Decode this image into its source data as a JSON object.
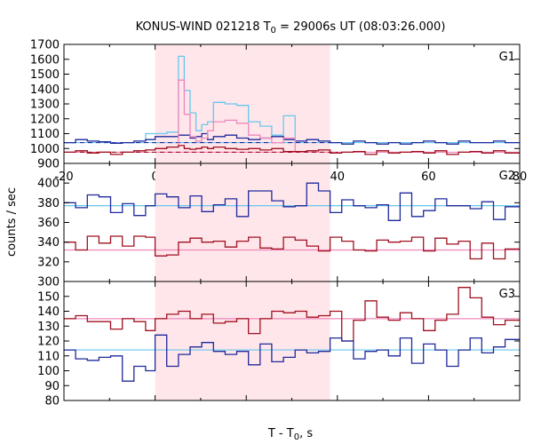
{
  "title": {
    "main": "KONUS-WIND 021218 T",
    "sub": "0",
    "rest": " = 29006s UT (08:03:26.000)"
  },
  "xlabel": {
    "main": "T - T",
    "sub": "0",
    "rest": ", s"
  },
  "ylabel": "counts / sec",
  "colors": {
    "blue": "#1f2a9c",
    "red": "#a01020",
    "light_blue": "#66c8ee",
    "pink": "#ee88bb",
    "highlight": "#ffe6ea",
    "frame": "#000000"
  },
  "chart_data": [
    {
      "type": "line",
      "step": true,
      "panel_label": "G1",
      "xlim": [
        -20,
        80
      ],
      "ylim": [
        900,
        1700
      ],
      "yticks": [
        900,
        1000,
        1100,
        1200,
        1300,
        1400,
        1500,
        1600,
        1700
      ],
      "xticks": [
        -20,
        0,
        20,
        40,
        60,
        80
      ],
      "xticklabels": [
        "-20",
        "0",
        "20",
        "40",
        "60",
        "80"
      ],
      "highlight_x": [
        0,
        38.4
      ],
      "bin_edges": [
        -20,
        -17.44,
        -14.88,
        -12.32,
        -9.76,
        -7.2,
        -4.64,
        -2.08,
        0,
        2.56,
        5.12,
        6.4,
        7.68,
        8.96,
        10.24,
        11.52,
        12.8,
        15.36,
        17.92,
        20.48,
        23.04,
        25.6,
        28.16,
        30.72,
        33.28,
        35.84,
        38.4,
        40.96,
        43.52,
        46.08,
        48.64,
        51.2,
        53.76,
        56.32,
        58.88,
        61.44,
        64,
        66.56,
        69.12,
        71.68,
        74.24,
        76.8,
        80
      ],
      "series": [
        {
          "role": "summed counts",
          "color": "#66c8ee",
          "values": [
            1040,
            1060,
            1050,
            1045,
            1035,
            1040,
            1050,
            1100,
            1100,
            1110,
            1620,
            1390,
            1240,
            1120,
            1160,
            1180,
            1310,
            1300,
            1290,
            1180,
            1150,
            1090,
            1220,
            1050,
            1060,
            1050,
            1040,
            1030,
            1050,
            1040,
            1030,
            1040,
            1030,
            1040,
            1050,
            1040,
            1030,
            1050,
            1040,
            1040,
            1050,
            1040
          ]
        },
        {
          "role": "high-energy counts",
          "color": "#1f2a9c",
          "values": [
            1040,
            1060,
            1050,
            1045,
            1035,
            1040,
            1050,
            1060,
            1080,
            1080,
            1090,
            1090,
            1070,
            1080,
            1100,
            1060,
            1080,
            1090,
            1070,
            1060,
            1070,
            1080,
            1060,
            1050,
            1060,
            1050,
            1040,
            1030,
            1050,
            1040,
            1030,
            1040,
            1030,
            1040,
            1050,
            1040,
            1030,
            1050,
            1040,
            1040,
            1050,
            1040
          ]
        },
        {
          "role": "low-energy counts",
          "color": "#ee88bb",
          "values": [
            975,
            985,
            970,
            975,
            960,
            975,
            985,
            990,
            1000,
            1010,
            1460,
            1230,
            1080,
            1050,
            1070,
            1120,
            1180,
            1190,
            1170,
            1090,
            1070,
            1040,
            1070,
            980,
            985,
            990,
            970,
            975,
            980,
            960,
            985,
            970,
            975,
            980,
            970,
            985,
            960,
            975,
            980,
            970,
            985,
            970
          ]
        },
        {
          "role": "low-energy band",
          "color": "#a01020",
          "values": [
            975,
            985,
            970,
            975,
            960,
            975,
            985,
            990,
            1000,
            1010,
            1020,
            1000,
            995,
            1000,
            1010,
            1000,
            1010,
            1000,
            995,
            1000,
            990,
            1000,
            980,
            980,
            985,
            990,
            970,
            975,
            980,
            960,
            985,
            970,
            975,
            980,
            970,
            985,
            960,
            975,
            980,
            970,
            985,
            970
          ]
        }
      ],
      "background_levels": [
        {
          "color": "#66c8ee",
          "y": 1040,
          "style": "solid"
        },
        {
          "color": "#1f2a9c",
          "y": 1040,
          "style": "dashed",
          "x_range": [
            -20,
            40
          ]
        },
        {
          "color": "#ee88bb",
          "y": 975,
          "style": "solid"
        },
        {
          "color": "#a01020",
          "y": 975,
          "style": "dashed",
          "x_range": [
            -20,
            40
          ]
        }
      ]
    },
    {
      "type": "line",
      "step": true,
      "panel_label": "G2",
      "xlim": [
        -20,
        80
      ],
      "ylim": [
        300,
        420
      ],
      "yticks": [
        300,
        320,
        340,
        360,
        380,
        400
      ],
      "highlight_x": [
        0,
        38.4
      ],
      "bin_edges": [
        -20,
        -17.44,
        -14.88,
        -12.32,
        -9.76,
        -7.2,
        -4.64,
        -2.08,
        0,
        2.56,
        5.12,
        7.68,
        10.24,
        12.8,
        15.36,
        17.92,
        20.48,
        23.04,
        25.6,
        28.16,
        30.72,
        33.28,
        35.84,
        38.4,
        40.96,
        43.52,
        46.08,
        48.64,
        51.2,
        53.76,
        56.32,
        58.88,
        61.44,
        64,
        66.56,
        69.12,
        71.68,
        74.24,
        76.8,
        80
      ],
      "series": [
        {
          "color": "#1f2a9c",
          "values": [
            380,
            375,
            388,
            386,
            370,
            379,
            367,
            377,
            389,
            386,
            375,
            387,
            371,
            378,
            384,
            366,
            392,
            392,
            382,
            376,
            377,
            400,
            392,
            370,
            383,
            377,
            375,
            378,
            362,
            390,
            366,
            372,
            384,
            377,
            377,
            374,
            381,
            363,
            376
          ]
        },
        {
          "color": "#a01020",
          "values": [
            340,
            332,
            346,
            339,
            346,
            336,
            346,
            345,
            326,
            327,
            340,
            344,
            340,
            341,
            335,
            341,
            345,
            334,
            333,
            345,
            342,
            336,
            331,
            345,
            341,
            332,
            331,
            342,
            340,
            341,
            345,
            331,
            344,
            338,
            341,
            323,
            339,
            323,
            333
          ]
        }
      ],
      "background_levels": [
        {
          "color": "#66c8ee",
          "y": 377
        },
        {
          "color": "#ee88bb",
          "y": 332
        }
      ]
    },
    {
      "type": "line",
      "step": true,
      "panel_label": "G3",
      "xlim": [
        -20,
        80
      ],
      "ylim": [
        80,
        160
      ],
      "yticks": [
        80,
        90,
        100,
        110,
        120,
        130,
        140,
        150
      ],
      "highlight_x": [
        0,
        38.4
      ],
      "bin_edges": [
        -20,
        -17.44,
        -14.88,
        -12.32,
        -9.76,
        -7.2,
        -4.64,
        -2.08,
        0,
        2.56,
        5.12,
        7.68,
        10.24,
        12.8,
        15.36,
        17.92,
        20.48,
        23.04,
        25.6,
        28.16,
        30.72,
        33.28,
        35.84,
        38.4,
        40.96,
        43.52,
        46.08,
        48.64,
        51.2,
        53.76,
        56.32,
        58.88,
        61.44,
        64,
        66.56,
        69.12,
        71.68,
        74.24,
        76.8,
        80
      ],
      "series": [
        {
          "color": "#a01020",
          "values": [
            135,
            137,
            133,
            133,
            128,
            135,
            133,
            127,
            135,
            138,
            140,
            135,
            138,
            132,
            133,
            135,
            125,
            135,
            140,
            139,
            140,
            136,
            137,
            140,
            120,
            134,
            147,
            136,
            134,
            139,
            135,
            127,
            134,
            138,
            156,
            149,
            136,
            131,
            134
          ]
        },
        {
          "color": "#1f2a9c",
          "values": [
            114,
            108,
            107,
            109,
            110,
            93,
            103,
            100,
            124,
            103,
            111,
            116,
            119,
            113,
            111,
            113,
            104,
            118,
            106,
            109,
            114,
            112,
            113,
            122,
            120,
            108,
            113,
            114,
            110,
            122,
            105,
            118,
            114,
            103,
            114,
            122,
            112,
            116,
            121
          ]
        }
      ],
      "background_levels": [
        {
          "color": "#ee88bb",
          "y": 135
        },
        {
          "color": "#66c8ee",
          "y": 114
        }
      ]
    }
  ]
}
